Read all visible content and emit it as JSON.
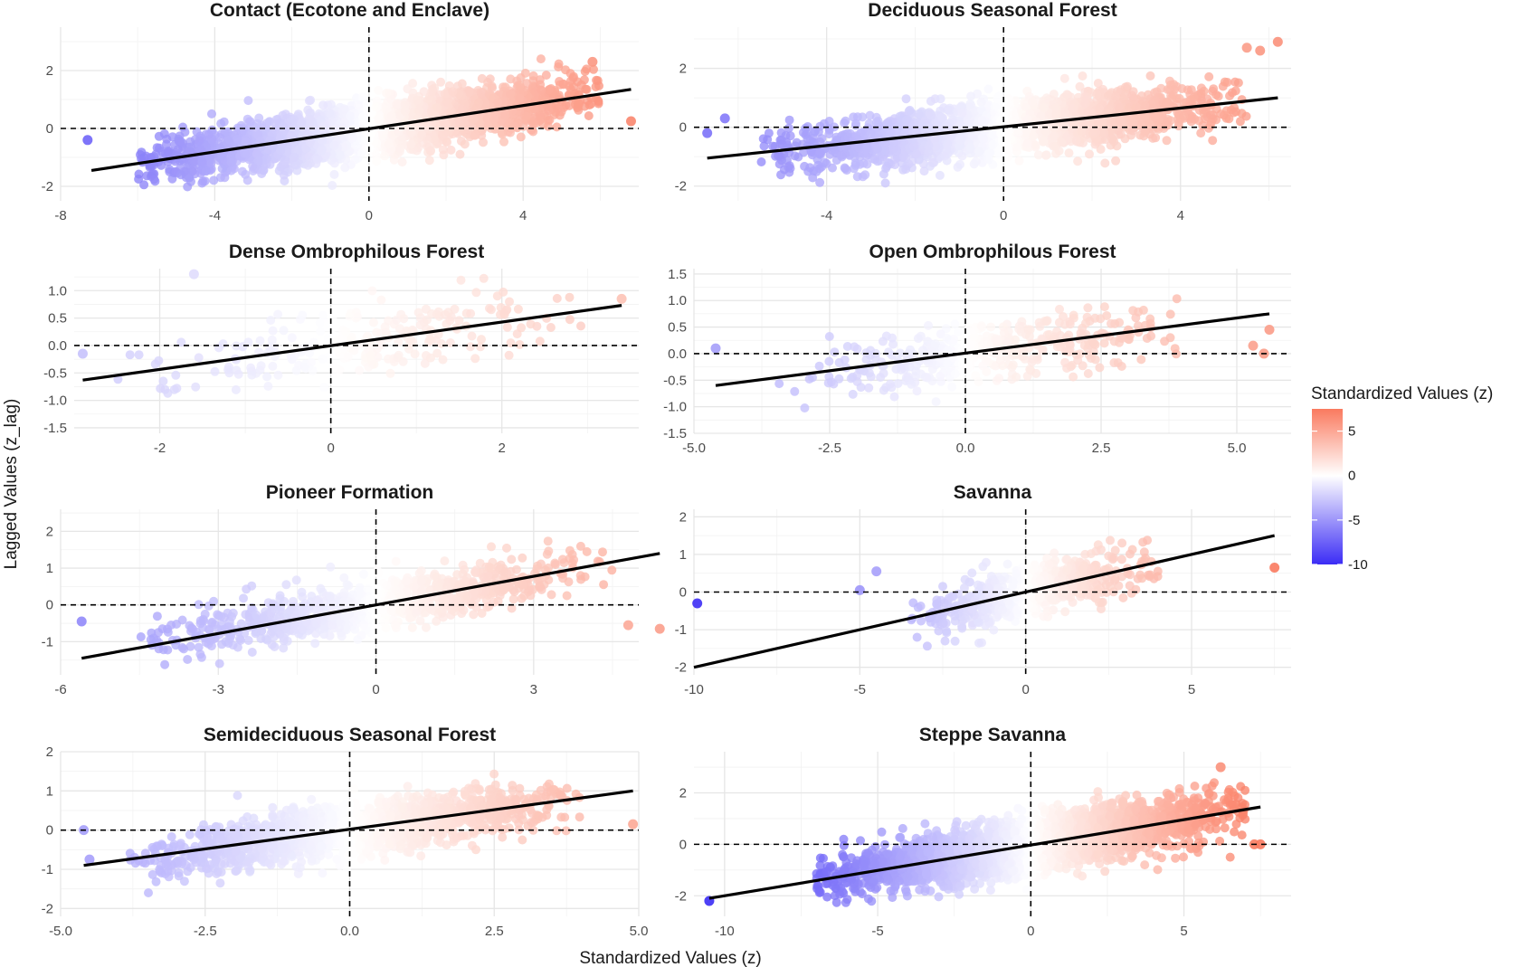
{
  "figure": {
    "xlabel": "Standardized Values (z)",
    "ylabel": "Lagged Values (z_lag)"
  },
  "legend": {
    "title": "Standardized Values (z)",
    "color_low": "#3b2cf5",
    "color_mid": "#ffffff",
    "color_high": "#fa7a5f",
    "range": [
      -10,
      7.5
    ],
    "ticks": [
      5,
      0,
      -5,
      -10
    ]
  },
  "chart_data": [
    {
      "type": "scatter",
      "title": "Contact (Ecotone and Enclave)",
      "xlim": [
        -8.0,
        7.0
      ],
      "ylim": [
        -2.5,
        3.5
      ],
      "xticks": [
        -8,
        -4,
        0,
        4
      ],
      "yticks": [
        2,
        0,
        -2
      ],
      "xtick_labels": [
        "-8",
        "-4",
        "0",
        "4"
      ],
      "ytick_labels": [
        "2",
        "0",
        "-2"
      ],
      "regression": {
        "x": [
          -7.2,
          6.8
        ],
        "y": [
          -1.45,
          1.35
        ]
      },
      "cloud": {
        "x_range": [
          -6.0,
          6.0
        ],
        "slope": 0.2,
        "spread": 0.8,
        "n": 3000
      },
      "points": [
        {
          "x": -7.3,
          "y": -0.4
        },
        {
          "x": 6.8,
          "y": 0.25
        },
        {
          "x": 5.8,
          "y": 2.3
        }
      ]
    },
    {
      "type": "scatter",
      "title": "Deciduous Seasonal Forest",
      "xlim": [
        -7.0,
        6.5
      ],
      "ylim": [
        -2.5,
        3.4
      ],
      "xticks": [
        -4,
        0,
        4
      ],
      "yticks": [
        2,
        0,
        -2
      ],
      "xtick_labels": [
        "-4",
        "0",
        "4"
      ],
      "ytick_labels": [
        "2",
        "0",
        "-2"
      ],
      "regression": {
        "x": [
          -6.7,
          6.2
        ],
        "y": [
          -1.05,
          1.0
        ]
      },
      "cloud": {
        "x_range": [
          -5.5,
          5.5
        ],
        "slope": 0.16,
        "spread": 0.8,
        "n": 2200
      },
      "points": [
        {
          "x": -6.3,
          "y": 0.3
        },
        {
          "x": -6.7,
          "y": -0.2
        },
        {
          "x": 6.2,
          "y": 2.9
        },
        {
          "x": 5.8,
          "y": 2.6
        },
        {
          "x": 5.5,
          "y": 2.7
        }
      ]
    },
    {
      "type": "scatter",
      "title": "Dense Ombrophilous Forest",
      "xlim": [
        -3.0,
        3.6
      ],
      "ylim": [
        -1.6,
        1.4
      ],
      "xticks": [
        -2,
        0,
        2
      ],
      "yticks": [
        1.0,
        0.5,
        0.0,
        -0.5,
        -1.0,
        -1.5
      ],
      "xtick_labels": [
        "-2",
        "0",
        "2"
      ],
      "ytick_labels": [
        "1.0",
        "0.5",
        "0.0",
        "-0.5",
        "-1.0",
        "-1.5"
      ],
      "regression": {
        "x": [
          -2.9,
          3.4
        ],
        "y": [
          -0.63,
          0.73
        ]
      },
      "cloud": {
        "x_range": [
          -2.5,
          3.0
        ],
        "slope": 0.22,
        "spread": 0.55,
        "n": 260
      },
      "points": [
        {
          "x": -2.9,
          "y": -0.15
        },
        {
          "x": 3.4,
          "y": 0.85
        },
        {
          "x": -1.6,
          "y": 1.3
        }
      ]
    },
    {
      "type": "scatter",
      "title": "Open Ombrophilous Forest",
      "xlim": [
        -5.0,
        6.0
      ],
      "ylim": [
        -1.5,
        1.6
      ],
      "xticks": [
        -5.0,
        -2.5,
        0.0,
        2.5,
        5.0
      ],
      "yticks": [
        1.5,
        1.0,
        0.5,
        0.0,
        -0.5,
        -1.0,
        -1.5
      ],
      "xtick_labels": [
        "-5.0",
        "-2.5",
        "0.0",
        "2.5",
        "5.0"
      ],
      "ytick_labels": [
        "1.5",
        "1.0",
        "0.5",
        "0.0",
        "-0.5",
        "-1.0",
        "-1.5"
      ],
      "regression": {
        "x": [
          -4.6,
          5.6
        ],
        "y": [
          -0.6,
          0.75
        ]
      },
      "cloud": {
        "x_range": [
          -3.5,
          4.0
        ],
        "slope": 0.13,
        "spread": 0.55,
        "n": 420
      },
      "points": [
        {
          "x": -4.6,
          "y": 0.1
        },
        {
          "x": 5.6,
          "y": 0.45
        },
        {
          "x": 5.5,
          "y": 0.0
        },
        {
          "x": 5.3,
          "y": 0.15
        }
      ]
    },
    {
      "type": "scatter",
      "title": "Pioneer Formation",
      "xlim": [
        -6.0,
        5.0
      ],
      "ylim": [
        -1.9,
        2.6
      ],
      "xticks": [
        -6,
        -3,
        0,
        3
      ],
      "yticks": [
        2,
        1,
        0,
        -1
      ],
      "xtick_labels": [
        "-6",
        "-3",
        "0",
        "3"
      ],
      "ytick_labels": [
        "2",
        "1",
        "0",
        "-1"
      ],
      "regression": {
        "x": [
          -5.6,
          5.4
        ],
        "y": [
          -1.45,
          1.4
        ]
      },
      "cloud": {
        "x_range": [
          -4.5,
          4.5
        ],
        "slope": 0.25,
        "spread": 0.6,
        "n": 900
      },
      "points": [
        {
          "x": -5.6,
          "y": -0.45
        },
        {
          "x": 5.4,
          "y": -0.65
        },
        {
          "x": 4.8,
          "y": -0.55
        }
      ]
    },
    {
      "type": "scatter",
      "title": "Savanna",
      "xlim": [
        -10.0,
        8.0
      ],
      "ylim": [
        -2.2,
        2.2
      ],
      "xticks": [
        -10,
        -5,
        0,
        5
      ],
      "yticks": [
        2,
        1,
        0,
        -1,
        -2
      ],
      "xtick_labels": [
        "-10",
        "-5",
        "0",
        "5"
      ],
      "ytick_labels": [
        "2",
        "1",
        "0",
        "-1",
        "-2"
      ],
      "regression": {
        "x": [
          -10.0,
          7.5
        ],
        "y": [
          -2.0,
          1.5
        ]
      },
      "cloud": {
        "x_range": [
          -3.5,
          4.0
        ],
        "slope": 0.2,
        "spread": 0.6,
        "n": 650
      },
      "points": [
        {
          "x": -9.9,
          "y": -0.3
        },
        {
          "x": 7.5,
          "y": 0.65
        },
        {
          "x": -5.0,
          "y": 0.05
        },
        {
          "x": -4.5,
          "y": 0.55
        }
      ]
    },
    {
      "type": "scatter",
      "title": "Semideciduous Seasonal Forest",
      "xlim": [
        -5.0,
        5.0
      ],
      "ylim": [
        -2.2,
        2.0
      ],
      "xticks": [
        -5.0,
        -2.5,
        0.0,
        2.5,
        5.0
      ],
      "yticks": [
        2,
        1,
        0,
        -1,
        -2
      ],
      "xtick_labels": [
        "-5.0",
        "-2.5",
        "0.0",
        "2.5",
        "5.0"
      ],
      "ytick_labels": [
        "2",
        "1",
        "0",
        "-1",
        "-2"
      ],
      "regression": {
        "x": [
          -4.6,
          4.9
        ],
        "y": [
          -0.9,
          1.0
        ]
      },
      "cloud": {
        "x_range": [
          -3.8,
          4.0
        ],
        "slope": 0.2,
        "spread": 0.6,
        "n": 1600
      },
      "points": [
        {
          "x": -4.6,
          "y": 0.0
        },
        {
          "x": 4.9,
          "y": 0.15
        },
        {
          "x": -4.5,
          "y": -0.75
        }
      ]
    },
    {
      "type": "scatter",
      "title": "Steppe Savanna",
      "xlim": [
        -11.0,
        8.5
      ],
      "ylim": [
        -2.8,
        3.6
      ],
      "xticks": [
        -10,
        -5,
        0,
        5
      ],
      "yticks": [
        2,
        0,
        -2
      ],
      "xtick_labels": [
        "-10",
        "-5",
        "0",
        "5"
      ],
      "ytick_labels": [
        "2",
        "0",
        "-2"
      ],
      "regression": {
        "x": [
          -10.5,
          7.5
        ],
        "y": [
          -2.1,
          1.45
        ]
      },
      "cloud": {
        "x_range": [
          -7.0,
          7.0
        ],
        "slope": 0.2,
        "spread": 0.9,
        "n": 3200
      },
      "points": [
        {
          "x": -10.5,
          "y": -2.2
        },
        {
          "x": 7.5,
          "y": 0.0
        },
        {
          "x": 7.3,
          "y": 0.0
        },
        {
          "x": 6.2,
          "y": 3.0
        }
      ]
    }
  ]
}
